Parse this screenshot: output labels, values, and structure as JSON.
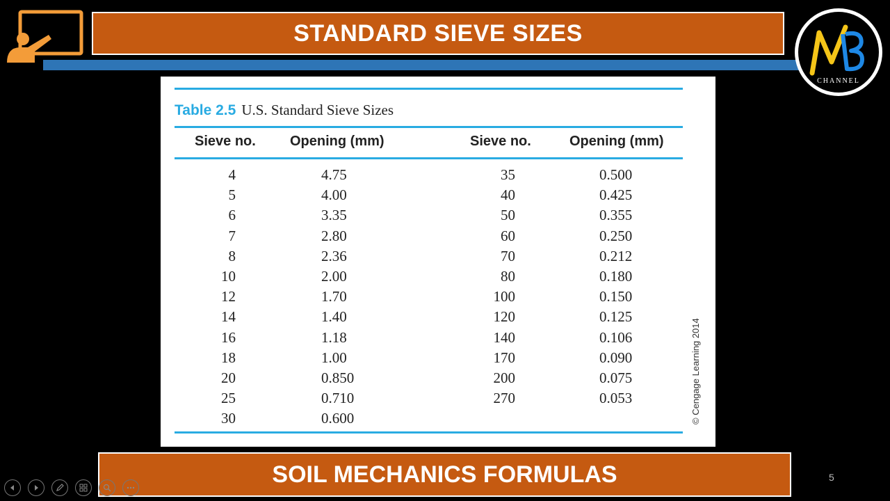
{
  "slide": {
    "title": "STANDARD SIEVE SIZES",
    "footer": "SOIL MECHANICS FORMULAS",
    "page_number": "5",
    "logo_text": "CHANNEL"
  },
  "table": {
    "caption_num": "Table 2.5",
    "caption_text": "U.S. Standard Sieve Sizes",
    "headers": [
      "Sieve no.",
      "Opening (mm)",
      "Sieve no.",
      "Opening (mm)"
    ],
    "left_sieve": [
      "4",
      "5",
      "6",
      "7",
      "8",
      "10",
      "12",
      "14",
      "16",
      "18",
      "20",
      "25",
      "30"
    ],
    "left_opening": [
      "4.75",
      "4.00",
      "3.35",
      "2.80",
      "2.36",
      "2.00",
      "1.70",
      "1.40",
      "1.18",
      "1.00",
      "0.850",
      "0.710",
      "0.600"
    ],
    "right_sieve": [
      "35",
      "40",
      "50",
      "60",
      "70",
      "80",
      "100",
      "120",
      "140",
      "170",
      "200",
      "270"
    ],
    "right_opening": [
      "0.500",
      "0.425",
      "0.355",
      "0.250",
      "0.212",
      "0.180",
      "0.150",
      "0.125",
      "0.106",
      "0.090",
      "0.075",
      "0.053"
    ],
    "copyright": "© Cengage Learning 2014"
  },
  "controls": [
    {
      "name": "previous-slide",
      "icon": "arrow-left-icon"
    },
    {
      "name": "next-slide",
      "icon": "arrow-right-icon"
    },
    {
      "name": "pen-tool",
      "icon": "pen-icon"
    },
    {
      "name": "see-all-slides",
      "icon": "slides-icon"
    },
    {
      "name": "zoom",
      "icon": "magnifier-icon"
    },
    {
      "name": "more-options",
      "icon": "ellipsis-icon"
    }
  ],
  "colors": {
    "orange": "#c55a11",
    "blue_band": "#2e75b6",
    "table_accent": "#29abe2",
    "logo_yellow": "#f5c518",
    "logo_blue": "#1e88e5"
  }
}
